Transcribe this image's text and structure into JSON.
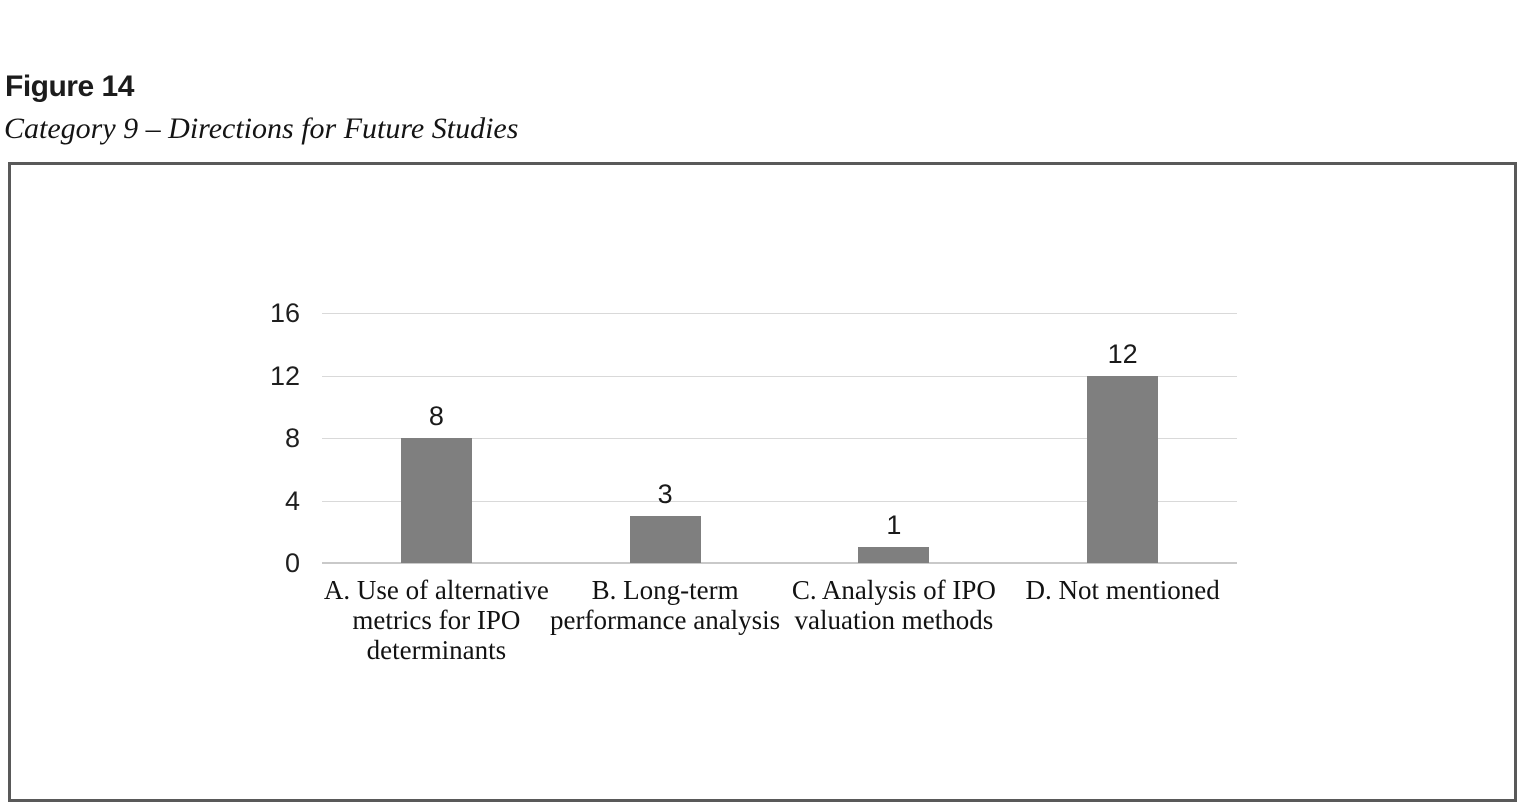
{
  "figure": {
    "label": "Figure 14",
    "caption": "Category 9 – Directions for Future Studies"
  },
  "chart_data": {
    "type": "bar",
    "title": "Category 9 – Directions for Future Studies",
    "categories": [
      "A. Use of alternative metrics for IPO determinants",
      "B. Long-term performance analysis",
      "C. Analysis of IPO valuation methods",
      "D. Not mentioned"
    ],
    "values": [
      8,
      3,
      1,
      12
    ],
    "data_labels": [
      8,
      3,
      1,
      12
    ],
    "xlabel": "",
    "ylabel": "",
    "yticks": [
      0,
      4,
      8,
      12,
      16
    ],
    "ylim": [
      0,
      16
    ],
    "grid": true,
    "legend": false,
    "bar_color": "#7f7f7f",
    "gridline_color": "#d9d9d9",
    "axis_line_color": "#c9c9c9",
    "frame_border_color": "#595959",
    "background": "#ffffff",
    "text_color": "#1a1a1a"
  }
}
